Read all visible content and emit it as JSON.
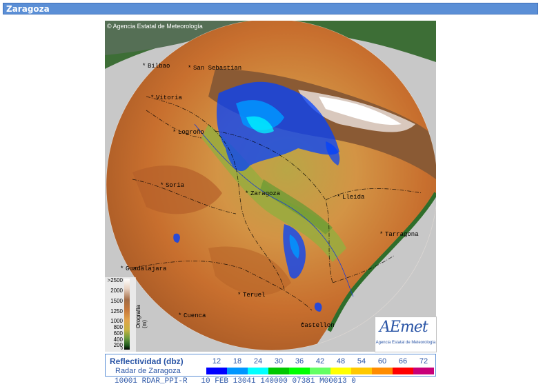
{
  "header": {
    "title": "Zaragoza"
  },
  "map": {
    "credit": "Agencia Estatal de Meteorología",
    "cities": [
      {
        "name": "Bilbao"
      },
      {
        "name": "San Sebastian"
      },
      {
        "name": "Vitoria"
      },
      {
        "name": "Logroño"
      },
      {
        "name": "Soria"
      },
      {
        "name": "Zaragoza"
      },
      {
        "name": "Lleida"
      },
      {
        "name": "Tarragona"
      },
      {
        "name": "Guadalajara"
      },
      {
        "name": "Teruel"
      },
      {
        "name": "Cuenca"
      },
      {
        "name": "Castellon"
      }
    ],
    "elevation_scale": {
      "labels": [
        ">2500",
        "2000",
        "1500",
        "1250",
        "1000",
        "800",
        "600",
        "400",
        "200",
        "0"
      ],
      "unit": "Orografía (m)"
    },
    "logo": {
      "text": "AEmet",
      "subtitle": "Agencia Estatal de Meteorología"
    }
  },
  "legend": {
    "title": "Reflectividad (dbz)",
    "subtitle": "Radar de Zaragoza",
    "levels": [
      {
        "value": "12",
        "color": "#0000ff"
      },
      {
        "value": "18",
        "color": "#0096ff"
      },
      {
        "value": "24",
        "color": "#00ffff"
      },
      {
        "value": "30",
        "color": "#00c800"
      },
      {
        "value": "36",
        "color": "#00ff00"
      },
      {
        "value": "42",
        "color": "#64ff64"
      },
      {
        "value": "48",
        "color": "#ffff00"
      },
      {
        "value": "54",
        "color": "#ffc800"
      },
      {
        "value": "60",
        "color": "#ff8c00"
      },
      {
        "value": "66",
        "color": "#ff0000"
      },
      {
        "value": "72",
        "color": "#c80078"
      }
    ]
  },
  "status_line": "10001 RDAR_PPI-R   10 FEB 13041 140000 07381 M00013 0"
}
